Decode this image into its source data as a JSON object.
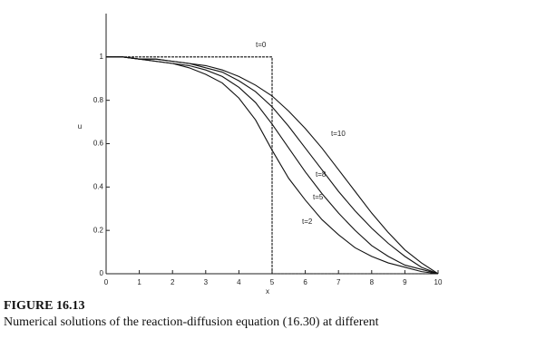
{
  "chart_data": {
    "type": "line",
    "xlabel": "x",
    "ylabel": "u",
    "xlim": [
      0,
      10
    ],
    "ylim": [
      0,
      1.2
    ],
    "xticks": [
      0,
      1,
      2,
      3,
      4,
      5,
      6,
      7,
      8,
      9,
      10
    ],
    "yticks": [
      0,
      0.2,
      0.4,
      0.6,
      0.8,
      1
    ],
    "series": [
      {
        "name": "t=0",
        "color": "#111111",
        "x": [
          0,
          5,
          5,
          10
        ],
        "values": [
          1,
          1,
          0,
          0
        ]
      },
      {
        "name": "t=10",
        "color": "#111111",
        "x": [
          0,
          0.5,
          1,
          1.5,
          2,
          2.5,
          3,
          3.5,
          4,
          4.5,
          5,
          5.5,
          6,
          6.5,
          7,
          7.5,
          8,
          8.5,
          9,
          9.5,
          10
        ],
        "values": [
          1,
          1,
          0.99,
          0.99,
          0.98,
          0.97,
          0.96,
          0.94,
          0.91,
          0.87,
          0.82,
          0.75,
          0.67,
          0.58,
          0.48,
          0.38,
          0.28,
          0.19,
          0.11,
          0.05,
          0
        ]
      },
      {
        "name": "t=8",
        "color": "#111111",
        "x": [
          0,
          0.5,
          1,
          1.5,
          2,
          2.5,
          3,
          3.5,
          4,
          4.5,
          5,
          5.5,
          6,
          6.5,
          7,
          7.5,
          8,
          8.5,
          9,
          9.5,
          10
        ],
        "values": [
          1,
          1,
          0.99,
          0.99,
          0.98,
          0.97,
          0.95,
          0.93,
          0.89,
          0.84,
          0.77,
          0.68,
          0.58,
          0.48,
          0.38,
          0.29,
          0.21,
          0.14,
          0.08,
          0.03,
          0
        ]
      },
      {
        "name": "t=5",
        "color": "#111111",
        "x": [
          0,
          0.5,
          1,
          1.5,
          2,
          2.5,
          3,
          3.5,
          4,
          4.5,
          5,
          5.5,
          6,
          6.5,
          7,
          7.5,
          8,
          8.5,
          9,
          9.5,
          10
        ],
        "values": [
          1,
          1,
          0.99,
          0.98,
          0.97,
          0.96,
          0.94,
          0.91,
          0.86,
          0.79,
          0.69,
          0.58,
          0.47,
          0.37,
          0.28,
          0.2,
          0.13,
          0.08,
          0.04,
          0.02,
          0
        ]
      },
      {
        "name": "t=2",
        "color": "#111111",
        "x": [
          0,
          0.5,
          1,
          1.5,
          2,
          2.5,
          3,
          3.5,
          4,
          4.5,
          5,
          5.5,
          6,
          6.5,
          7,
          7.5,
          8,
          8.5,
          9,
          9.5,
          10
        ],
        "values": [
          1,
          1,
          0.99,
          0.98,
          0.97,
          0.95,
          0.92,
          0.88,
          0.81,
          0.71,
          0.57,
          0.44,
          0.34,
          0.25,
          0.18,
          0.12,
          0.08,
          0.05,
          0.03,
          0.01,
          0
        ]
      }
    ]
  },
  "caption": {
    "label": "FIGURE 16.13",
    "text": "Numerical solutions of the reaction-diffusion equation (16.30) at different"
  }
}
